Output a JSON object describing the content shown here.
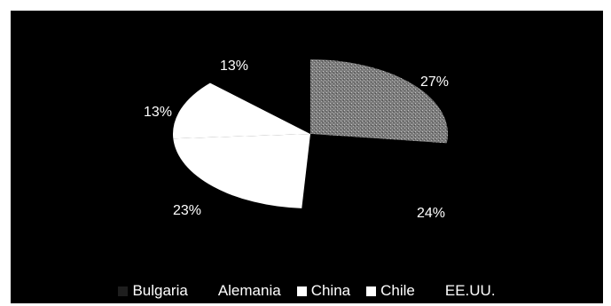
{
  "chart_data": {
    "type": "pie",
    "title": "",
    "series": [
      {
        "name": "Bulgaria",
        "label": "27%",
        "value": 27,
        "color": "#8a8a8a"
      },
      {
        "name": "Alemania",
        "label": "24%",
        "value": 24,
        "color": "#000000"
      },
      {
        "name": "China",
        "label": "23%",
        "value": 23,
        "color": "#ffffff"
      },
      {
        "name": "Chile",
        "label": "13%",
        "value": 13,
        "color": "#ffffff"
      },
      {
        "name": "EE.UU.",
        "label": "13%",
        "value": 13,
        "color": "#000000"
      }
    ],
    "legend_position": "bottom"
  }
}
